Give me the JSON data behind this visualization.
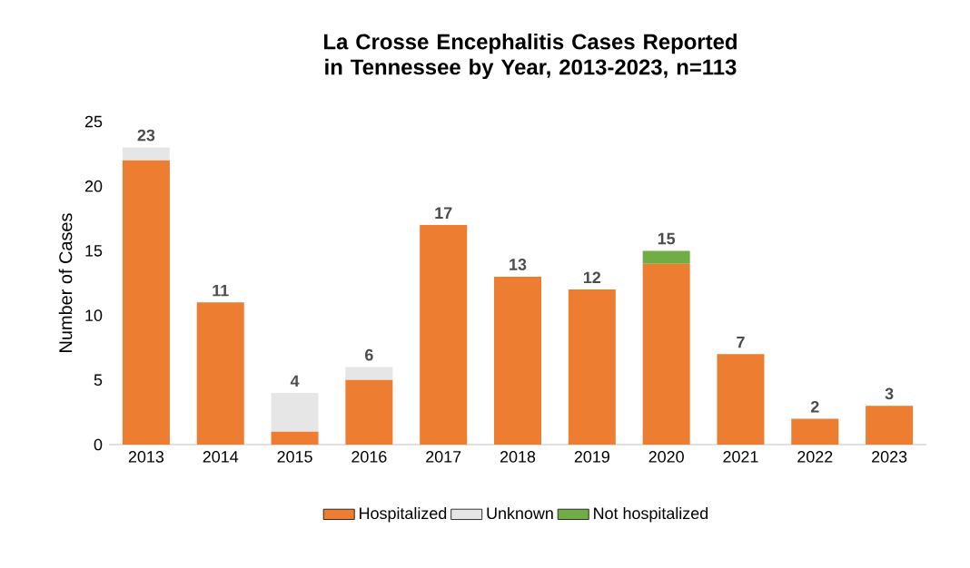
{
  "chart_data": {
    "type": "bar",
    "title": "La Crosse Encephalitis Cases Reported in Tennessee by Year, 2013-2023, n=113",
    "ylabel": "Number of Cases",
    "categories": [
      "2013",
      "2014",
      "2015",
      "2016",
      "2017",
      "2018",
      "2019",
      "2020",
      "2021",
      "2022",
      "2023"
    ],
    "series": [
      {
        "name": "Hospitalized",
        "color": "#ed7d31",
        "values": [
          22,
          11,
          1,
          5,
          17,
          13,
          12,
          14,
          7,
          2,
          3
        ]
      },
      {
        "name": "Unknown",
        "color": "#e6e6e6",
        "values": [
          1,
          0,
          3,
          1,
          0,
          0,
          0,
          0,
          0,
          0,
          0
        ]
      },
      {
        "name": "Not hospitalized",
        "color": "#70ad47",
        "values": [
          0,
          0,
          0,
          0,
          0,
          0,
          0,
          1,
          0,
          0,
          0
        ]
      }
    ],
    "stacked": true,
    "totals": [
      "23",
      "11",
      "4",
      "6",
      "17",
      "13",
      "12",
      "15",
      "7",
      "2",
      "3"
    ],
    "ylim": [
      0,
      25
    ],
    "yticks": [
      0,
      5,
      10,
      15,
      20,
      25
    ],
    "grid": false,
    "legend": "bottom"
  }
}
